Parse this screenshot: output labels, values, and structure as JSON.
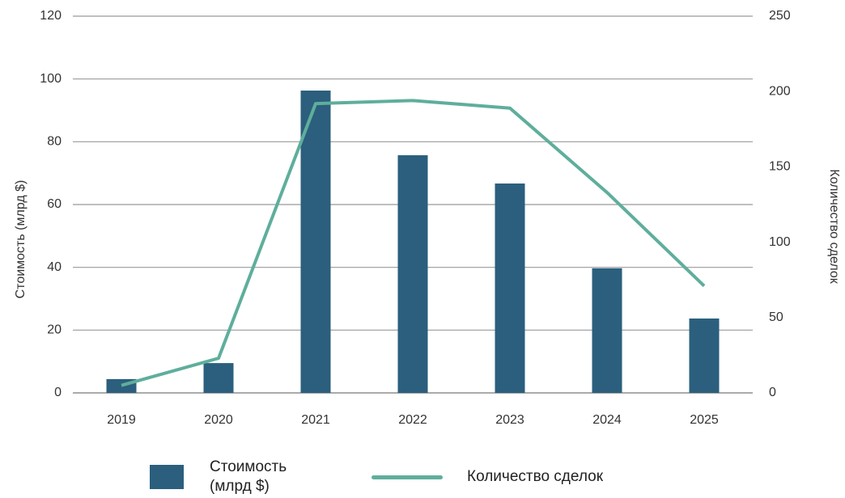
{
  "chart_data": {
    "type": "bar",
    "categories": [
      "2019",
      "2020",
      "2021",
      "2022",
      "2023",
      "2024",
      "2025"
    ],
    "series": [
      {
        "name": "Стоимость (млрд $)",
        "color": "#2b5f7d",
        "type": "bar",
        "values": [
          4.4,
          9.5,
          96.3,
          75.7,
          66.7,
          39.7,
          23.7
        ]
      },
      {
        "name": "Количество сделок",
        "color": "#5fae9c",
        "type": "line",
        "axis": "y2",
        "values": [
          5,
          23,
          192,
          194,
          189,
          133,
          71
        ]
      }
    ],
    "ylabel": "Стоимость (млрд $)",
    "y2label": "Количество сделок",
    "ylim": [
      0,
      120
    ],
    "yticks": [
      0,
      20,
      40,
      60,
      80,
      100,
      120
    ],
    "y2lim": [
      0,
      250
    ],
    "y2ticks": [
      0,
      50,
      100,
      150,
      200,
      250
    ],
    "grid": true
  }
}
